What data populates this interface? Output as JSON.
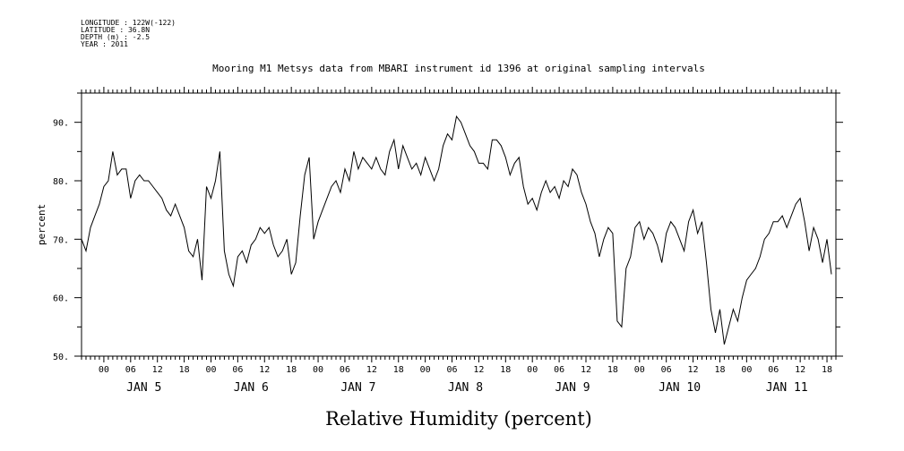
{
  "meta": {
    "longitude": "LONGITUDE : 122W(-122)",
    "latitude": "LATITUDE : 36.8N",
    "depth": "DEPTH (m) : -2.5",
    "year": "YEAR : 2011"
  },
  "chart_data": {
    "type": "line",
    "title": "Mooring M1 Metsys data from MBARI instrument id 1396 at original sampling intervals",
    "xlabel": "Relative Humidity (percent)",
    "ylabel": "percent",
    "ylim": [
      50,
      95
    ],
    "yticks": [
      50,
      60,
      70,
      80,
      90
    ],
    "ytick_labels": [
      "50.",
      "60.",
      "70.",
      "80.",
      "90."
    ],
    "xlim_hours": [
      -5,
      164
    ],
    "hour_tick_labels": [
      "00",
      "06",
      "12",
      "18"
    ],
    "day_labels": [
      "JAN  5",
      "JAN  6",
      "JAN  7",
      "JAN  8",
      "JAN  9",
      "JAN 10",
      "JAN 11"
    ],
    "grid": false,
    "series": [
      {
        "name": "",
        "x_hours_from_jan5": [
          -5,
          -4,
          -3,
          -2,
          -1,
          0,
          1,
          2,
          3,
          4,
          5,
          6,
          7,
          8,
          9,
          10,
          11,
          12,
          13,
          14,
          15,
          16,
          17,
          18,
          19,
          20,
          21,
          22,
          23,
          24,
          25,
          26,
          27,
          28,
          29,
          30,
          31,
          32,
          33,
          34,
          35,
          36,
          37,
          38,
          39,
          40,
          41,
          42,
          43,
          44,
          45,
          46,
          47,
          48,
          49,
          50,
          51,
          52,
          53,
          54,
          55,
          56,
          57,
          58,
          59,
          60,
          61,
          62,
          63,
          64,
          65,
          66,
          67,
          68,
          69,
          70,
          71,
          72,
          73,
          74,
          75,
          76,
          77,
          78,
          79,
          80,
          81,
          82,
          83,
          84,
          85,
          86,
          87,
          88,
          89,
          90,
          91,
          92,
          93,
          94,
          95,
          96,
          97,
          98,
          99,
          100,
          101,
          102,
          103,
          104,
          105,
          106,
          107,
          108,
          109,
          110,
          111,
          112,
          113,
          114,
          115,
          116,
          117,
          118,
          119,
          120,
          121,
          122,
          123,
          124,
          125,
          126,
          127,
          128,
          129,
          130,
          131,
          132,
          133,
          134,
          135,
          136,
          137,
          138,
          139,
          140,
          141,
          142,
          143,
          144,
          145,
          146,
          147,
          148,
          149,
          150,
          151,
          152,
          153,
          154,
          155,
          156,
          157,
          158,
          159,
          160,
          161,
          162,
          163,
          164
        ],
        "values": [
          70,
          68,
          72,
          74,
          76,
          79,
          80,
          85,
          81,
          82,
          82,
          77,
          80,
          81,
          80,
          80,
          79,
          78,
          77,
          75,
          74,
          76,
          74,
          72,
          68,
          67,
          70,
          63,
          79,
          77,
          80,
          85,
          68,
          64,
          62,
          67,
          68,
          66,
          69,
          70,
          72,
          71,
          72,
          69,
          67,
          68,
          70,
          64,
          66,
          74,
          81,
          84,
          70,
          73,
          75,
          77,
          79,
          80,
          78,
          82,
          80,
          85,
          82,
          84,
          83,
          82,
          84,
          82,
          81,
          85,
          87,
          82,
          86,
          84,
          82,
          83,
          81,
          84,
          82,
          80,
          82,
          86,
          88,
          87,
          91,
          90,
          88,
          86,
          85,
          83,
          83,
          82,
          87,
          87,
          86,
          84,
          81,
          83,
          84,
          79,
          76,
          77,
          75,
          78,
          80,
          78,
          79,
          77,
          80,
          79,
          82,
          81,
          78,
          76,
          73,
          71,
          67,
          70,
          72,
          71,
          56,
          55,
          65,
          67,
          72,
          73,
          70,
          72,
          71,
          69,
          66,
          71,
          73,
          72,
          70,
          68,
          73,
          75,
          71,
          73,
          66,
          58,
          54,
          58,
          52,
          55,
          58,
          56,
          60,
          63,
          64,
          65,
          67,
          70,
          71,
          73,
          73,
          74,
          72,
          74,
          76,
          77,
          73,
          68,
          72,
          70,
          66,
          70,
          64
        ]
      }
    ]
  }
}
